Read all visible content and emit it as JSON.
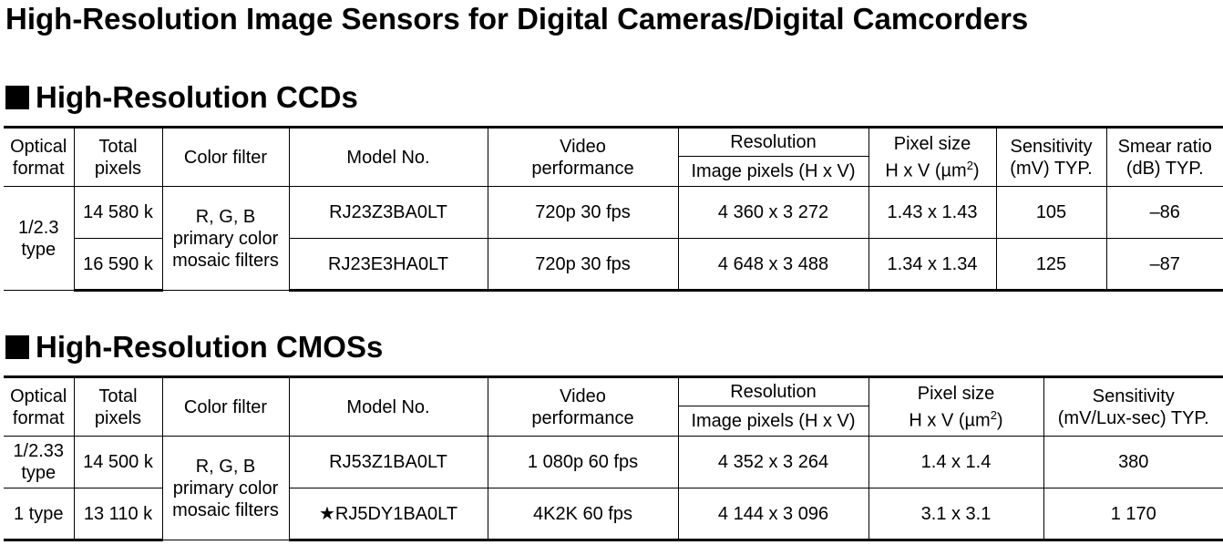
{
  "page": {
    "title": "High-Resolution Image Sensors for Digital Cameras/Digital Camcorders"
  },
  "ccd": {
    "heading": "High-Resolution CCDs",
    "headers": {
      "optical_format": [
        "Optical",
        "format"
      ],
      "total_pixels": [
        "Total",
        "pixels"
      ],
      "color_filter": "Color filter",
      "model_no": "Model No.",
      "video_performance": [
        "Video",
        "performance"
      ],
      "resolution": "Resolution",
      "image_pixels": "Image pixels (H x V)",
      "pixel_size": [
        "Pixel size",
        "H x V (µm",
        "2",
        ")"
      ],
      "sensitivity": [
        "Sensitivity",
        "(mV) TYP."
      ],
      "smear_ratio": [
        "Smear ratio",
        "(dB) TYP."
      ]
    },
    "optical_format": [
      "1/2.3",
      "type"
    ],
    "color_filter": [
      "R, G, B",
      "primary color",
      "mosaic filters"
    ],
    "rows": [
      {
        "total_pixels": "14 580 k",
        "model": "RJ23Z3BA0LT",
        "video": "720p 30 fps",
        "image_pixels": "4 360 x 3 272",
        "pixel_size": "1.43 x 1.43",
        "sensitivity": "105",
        "smear": "–86"
      },
      {
        "total_pixels": "16 590 k",
        "model": "RJ23E3HA0LT",
        "video": "720p 30 fps",
        "image_pixels": "4 648 x 3 488",
        "pixel_size": "1.34 x 1.34",
        "sensitivity": "125",
        "smear": "–87"
      }
    ]
  },
  "cmos": {
    "heading": "High-Resolution CMOSs",
    "headers": {
      "optical_format": [
        "Optical",
        "format"
      ],
      "total_pixels": [
        "Total",
        "pixels"
      ],
      "color_filter": "Color filter",
      "model_no": "Model No.",
      "video_performance": [
        "Video",
        "performance"
      ],
      "resolution": "Resolution",
      "image_pixels": "Image pixels (H x V)",
      "pixel_size": [
        "Pixel size",
        "H x V (µm",
        "2",
        ")"
      ],
      "sensitivity": [
        "Sensitivity",
        "(mV/Lux-sec) TYP."
      ]
    },
    "color_filter": [
      "R, G, B",
      "primary color",
      "mosaic filters"
    ],
    "rows": [
      {
        "optical_format": [
          "1/2.33",
          "type"
        ],
        "total_pixels": "14 500 k",
        "model": "RJ53Z1BA0LT",
        "video": "1 080p 60 fps",
        "image_pixels": "4 352 x 3 264",
        "pixel_size": "1.4 x 1.4",
        "sensitivity": "380"
      },
      {
        "optical_format": [
          "1 type",
          ""
        ],
        "total_pixels": "13 110 k",
        "model": "★RJ5DY1BA0LT",
        "video": "4K2K 60 fps",
        "image_pixels": "4 144 x 3 096",
        "pixel_size": "3.1 x 3.1",
        "sensitivity": "1 170"
      }
    ]
  }
}
